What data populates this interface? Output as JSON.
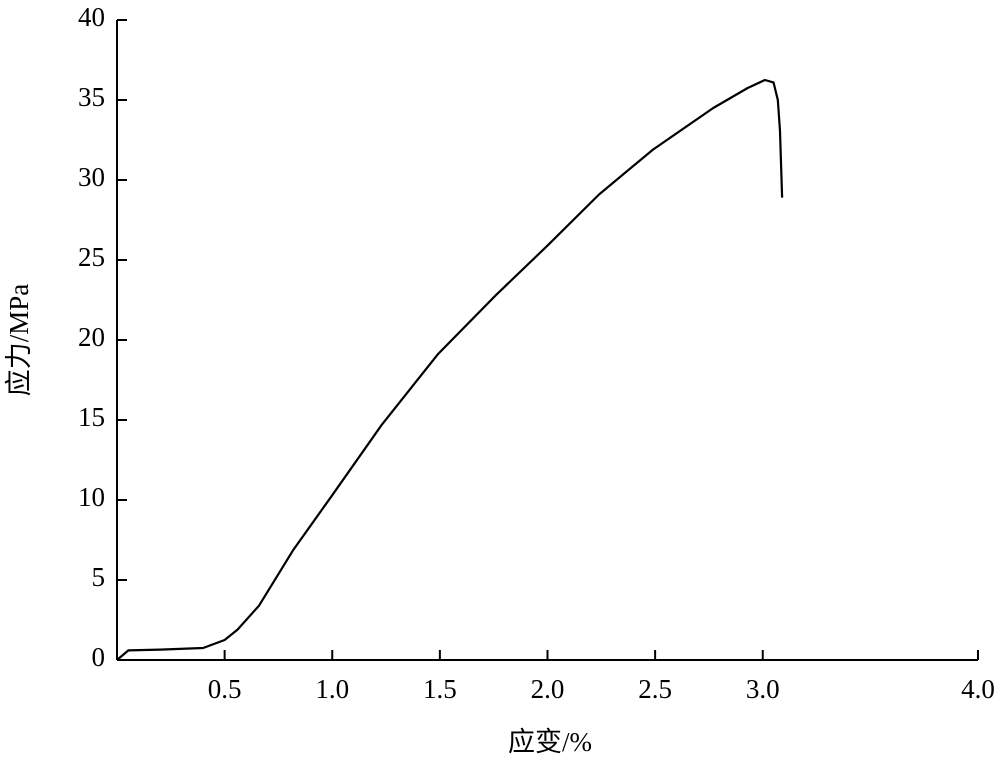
{
  "chart_data": {
    "type": "line",
    "x_label": "应变/%",
    "y_label": "应力/MPa",
    "series": [
      {
        "color": "#000000",
        "x": [
          0,
          0.053,
          0.2,
          0.4,
          0.5,
          0.56,
          0.66,
          0.82,
          1.0,
          1.23,
          1.49,
          1.76,
          2.0,
          2.24,
          2.49,
          2.77,
          2.93,
          3.01,
          3.05,
          3.07,
          3.08,
          3.09
        ],
        "values": [
          0,
          0.6,
          0.65,
          0.75,
          1.25,
          1.9,
          3.4,
          6.9,
          10.3,
          14.7,
          19.1,
          22.8,
          25.9,
          29.1,
          31.9,
          34.5,
          35.75,
          36.25,
          36.1,
          35,
          33.1,
          28.9
        ]
      }
    ],
    "xlim": [
      0,
      4
    ],
    "xticks": [
      0.5,
      {
        "value": 1,
        "label": "1.0"
      },
      1.5,
      {
        "value": 2,
        "label": "2.0"
      },
      2.5,
      {
        "value": 3,
        "label": "3.0"
      },
      {
        "value": 4,
        "label": "4.0"
      }
    ],
    "ylim": [
      0,
      40
    ],
    "yticks": [
      0,
      5,
      10,
      15,
      20,
      25,
      30,
      35,
      40
    ]
  }
}
